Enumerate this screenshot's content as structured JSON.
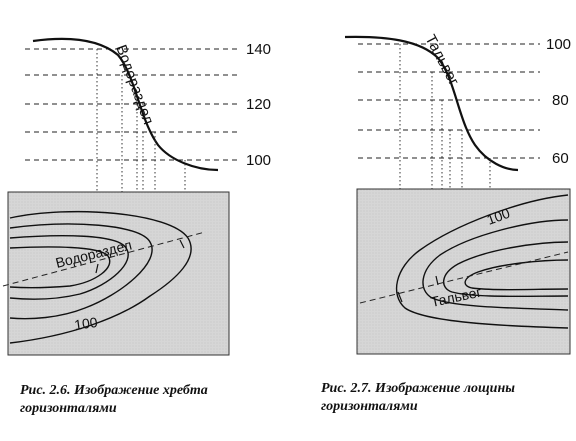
{
  "figure_left": {
    "level_labels": [
      "140",
      "120",
      "100"
    ],
    "profile_label": "Водораздел",
    "plan_label": "Водораздел",
    "contour_label": "100",
    "caption": "Рис. 2.6. Изображение хребта\nгоризонталями"
  },
  "figure_right": {
    "level_labels": [
      "100",
      "80",
      "60"
    ],
    "profile_label": "Тальвег",
    "plan_label": "Тальвег",
    "contour_label": "100",
    "caption": "Рис. 2.7. Изображение лощины\nгоризонталями"
  },
  "colors": {
    "map_fill": "#d6d6d6",
    "line": "#111111"
  }
}
